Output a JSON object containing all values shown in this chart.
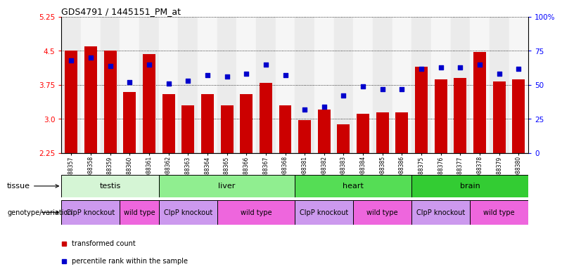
{
  "title": "GDS4791 / 1445151_PM_at",
  "samples": [
    "GSM988357",
    "GSM988358",
    "GSM988359",
    "GSM988360",
    "GSM988361",
    "GSM988362",
    "GSM988363",
    "GSM988364",
    "GSM988365",
    "GSM988366",
    "GSM988367",
    "GSM988368",
    "GSM988381",
    "GSM988382",
    "GSM988383",
    "GSM988384",
    "GSM988385",
    "GSM988386",
    "GSM988375",
    "GSM988376",
    "GSM988377",
    "GSM988378",
    "GSM988379",
    "GSM988380"
  ],
  "bar_values": [
    4.5,
    4.6,
    4.5,
    3.6,
    4.43,
    3.55,
    3.3,
    3.55,
    3.3,
    3.55,
    3.8,
    3.3,
    2.97,
    3.2,
    2.88,
    3.12,
    3.15,
    3.15,
    4.15,
    3.88,
    3.9,
    4.47,
    3.82,
    3.88
  ],
  "dot_percentiles": [
    68,
    70,
    64,
    52,
    65,
    51,
    53,
    57,
    56,
    58,
    65,
    57,
    32,
    34,
    42,
    49,
    47,
    47,
    62,
    63,
    63,
    65,
    58,
    62
  ],
  "y_min": 2.25,
  "y_max": 5.25,
  "yticks_left": [
    2.25,
    3.0,
    3.75,
    4.5,
    5.25
  ],
  "yticks_right_labels": [
    "0",
    "25",
    "50",
    "75",
    "100%"
  ],
  "bar_color": "#cc0000",
  "dot_color": "#0000cc",
  "tissue_groups": [
    {
      "label": "testis",
      "start": 0,
      "end": 5,
      "color": "#d5f5d5"
    },
    {
      "label": "liver",
      "start": 5,
      "end": 12,
      "color": "#90ee90"
    },
    {
      "label": "heart",
      "start": 12,
      "end": 18,
      "color": "#55dd55"
    },
    {
      "label": "brain",
      "start": 18,
      "end": 24,
      "color": "#33cc33"
    }
  ],
  "genotype_groups": [
    {
      "label": "ClpP knockout",
      "start": 0,
      "end": 3,
      "color": "#cc99ee"
    },
    {
      "label": "wild type",
      "start": 3,
      "end": 5,
      "color": "#ee66dd"
    },
    {
      "label": "ClpP knockout",
      "start": 5,
      "end": 8,
      "color": "#cc99ee"
    },
    {
      "label": "wild type",
      "start": 8,
      "end": 12,
      "color": "#ee66dd"
    },
    {
      "label": "ClpP knockout",
      "start": 12,
      "end": 15,
      "color": "#cc99ee"
    },
    {
      "label": "wild type",
      "start": 15,
      "end": 18,
      "color": "#ee66dd"
    },
    {
      "label": "ClpP knockout",
      "start": 18,
      "end": 21,
      "color": "#cc99ee"
    },
    {
      "label": "wild type",
      "start": 21,
      "end": 24,
      "color": "#ee66dd"
    }
  ]
}
